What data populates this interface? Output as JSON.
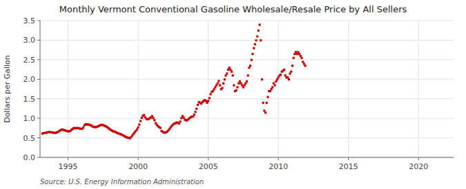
{
  "chart_data": {
    "type": "scatter",
    "title": "Monthly Vermont Conventional Gasoline Wholesale/Resale Price by All Sellers",
    "ylabel": "Dollars per Gallon",
    "source": "Source: U.S. Energy Information Administration",
    "color": "#cc0000",
    "marker": "square",
    "grid": true,
    "xlim": [
      1993.0,
      2022.5
    ],
    "xticks": [
      1995,
      2000,
      2005,
      2010,
      2015,
      2020
    ],
    "ylim": [
      0.0,
      3.5
    ],
    "yticks": [
      {
        "value": 0.0,
        "label": "0.0"
      },
      0.5,
      {
        "value": 1.0,
        "label": "1.0"
      },
      1.5,
      {
        "value": 2.0,
        "label": "2.0"
      },
      2.5,
      {
        "value": 3.0,
        "label": "3.0"
      },
      3.5
    ],
    "x": [
      1993.167,
      1993.25,
      1993.333,
      1993.417,
      1993.5,
      1993.583,
      1993.667,
      1993.75,
      1993.833,
      1993.917,
      1994.0,
      1994.083,
      1994.167,
      1994.25,
      1994.333,
      1994.417,
      1994.5,
      1994.583,
      1994.667,
      1994.75,
      1994.833,
      1994.917,
      1995.0,
      1995.083,
      1995.167,
      1995.25,
      1995.333,
      1995.417,
      1995.5,
      1995.583,
      1995.667,
      1995.75,
      1995.833,
      1995.917,
      1996.0,
      1996.083,
      1996.167,
      1996.25,
      1996.333,
      1996.417,
      1996.5,
      1996.583,
      1996.667,
      1996.75,
      1996.833,
      1996.917,
      1997.0,
      1997.083,
      1997.167,
      1997.25,
      1997.333,
      1997.417,
      1997.5,
      1997.583,
      1997.667,
      1997.75,
      1997.833,
      1997.917,
      1998.0,
      1998.083,
      1998.167,
      1998.25,
      1998.333,
      1998.417,
      1998.5,
      1998.583,
      1998.667,
      1998.75,
      1998.833,
      1998.917,
      1999.0,
      1999.083,
      1999.167,
      1999.25,
      1999.333,
      1999.417,
      1999.5,
      1999.583,
      1999.667,
      1999.75,
      1999.833,
      1999.917,
      2000.0,
      2000.083,
      2000.167,
      2000.25,
      2000.333,
      2000.417,
      2000.5,
      2000.583,
      2000.667,
      2000.75,
      2000.833,
      2000.917,
      2001.0,
      2001.083,
      2001.167,
      2001.25,
      2001.333,
      2001.417,
      2001.5,
      2001.583,
      2001.667,
      2001.75,
      2001.833,
      2001.917,
      2002.0,
      2002.083,
      2002.167,
      2002.25,
      2002.333,
      2002.417,
      2002.5,
      2002.583,
      2002.667,
      2002.75,
      2002.833,
      2002.917,
      2003.0,
      2003.083,
      2003.167,
      2003.25,
      2003.333,
      2003.417,
      2003.5,
      2003.583,
      2003.667,
      2003.75,
      2003.833,
      2003.917,
      2004.0,
      2004.083,
      2004.167,
      2004.25,
      2004.333,
      2004.417,
      2004.5,
      2004.583,
      2004.667,
      2004.75,
      2004.833,
      2004.917,
      2005.0,
      2005.083,
      2005.167,
      2005.25,
      2005.333,
      2005.417,
      2005.5,
      2005.583,
      2005.667,
      2005.75,
      2005.833,
      2005.917,
      2006.0,
      2006.083,
      2006.167,
      2006.25,
      2006.333,
      2006.417,
      2006.5,
      2006.583,
      2006.667,
      2006.75,
      2006.833,
      2006.917,
      2007.0,
      2007.083,
      2007.167,
      2007.25,
      2007.333,
      2007.417,
      2007.5,
      2007.583,
      2007.667,
      2007.75,
      2007.833,
      2007.917,
      2008.0,
      2008.083,
      2008.167,
      2008.25,
      2008.333,
      2008.417,
      2008.5,
      2008.583,
      2008.667,
      2008.75,
      2008.833,
      2008.917,
      2009.0,
      2009.083,
      2009.167,
      2009.25,
      2009.333,
      2009.417,
      2009.5,
      2009.583,
      2009.667,
      2009.75,
      2009.833,
      2009.917,
      2010.0,
      2010.083,
      2010.167,
      2010.25,
      2010.333,
      2010.417,
      2010.5,
      2010.583,
      2010.667,
      2010.75,
      2010.833,
      2010.917,
      2011.0,
      2011.083,
      2011.167,
      2011.25,
      2011.333,
      2011.417,
      2011.5,
      2011.583,
      2011.667,
      2011.75,
      2011.833,
      2011.917
    ],
    "values": [
      0.61,
      0.62,
      0.625,
      0.63,
      0.64,
      0.645,
      0.65,
      0.645,
      0.64,
      0.635,
      0.63,
      0.625,
      0.635,
      0.65,
      0.665,
      0.685,
      0.705,
      0.715,
      0.705,
      0.695,
      0.685,
      0.675,
      0.665,
      0.67,
      0.68,
      0.71,
      0.73,
      0.755,
      0.745,
      0.75,
      0.755,
      0.745,
      0.74,
      0.73,
      0.73,
      0.76,
      0.82,
      0.85,
      0.84,
      0.845,
      0.835,
      0.825,
      0.815,
      0.79,
      0.78,
      0.775,
      0.775,
      0.785,
      0.8,
      0.815,
      0.825,
      0.835,
      0.825,
      0.815,
      0.8,
      0.785,
      0.76,
      0.74,
      0.715,
      0.695,
      0.675,
      0.665,
      0.655,
      0.645,
      0.625,
      0.615,
      0.605,
      0.595,
      0.58,
      0.565,
      0.55,
      0.53,
      0.515,
      0.505,
      0.498,
      0.49,
      0.52,
      0.56,
      0.6,
      0.64,
      0.675,
      0.715,
      0.77,
      0.84,
      0.93,
      1.01,
      1.06,
      1.085,
      1.025,
      0.985,
      0.975,
      0.985,
      1.005,
      1.025,
      1.055,
      1.005,
      0.95,
      0.875,
      0.835,
      0.795,
      0.775,
      0.755,
      0.675,
      0.655,
      0.635,
      0.635,
      0.645,
      0.665,
      0.695,
      0.735,
      0.775,
      0.815,
      0.845,
      0.865,
      0.875,
      0.895,
      0.885,
      0.865,
      0.915,
      1.005,
      1.055,
      1.015,
      0.965,
      0.945,
      0.955,
      0.975,
      1.005,
      1.025,
      1.045,
      1.045,
      1.095,
      1.165,
      1.245,
      1.345,
      1.415,
      1.395,
      1.375,
      1.415,
      1.445,
      1.465,
      1.445,
      1.395,
      1.445,
      1.515,
      1.615,
      1.675,
      1.695,
      1.745,
      1.795,
      1.845,
      1.895,
      1.955,
      1.845,
      1.745,
      1.775,
      1.895,
      1.995,
      2.095,
      2.145,
      2.245,
      2.295,
      2.245,
      2.195,
      2.095,
      1.845,
      1.695,
      1.715,
      1.795,
      1.895,
      1.945,
      1.895,
      1.845,
      1.795,
      1.845,
      1.895,
      1.945,
      2.095,
      2.295,
      2.345,
      2.495,
      2.645,
      2.795,
      2.895,
      2.995,
      3.095,
      3.245,
      3.395,
      2.995,
      1.995,
      1.395,
      1.195,
      1.145,
      1.395,
      1.545,
      1.695,
      1.695,
      1.745,
      1.795,
      1.895,
      1.845,
      1.945,
      1.995,
      2.045,
      2.095,
      2.115,
      2.195,
      2.215,
      2.245,
      2.095,
      2.045,
      2.045,
      1.995,
      2.145,
      2.195,
      2.345,
      2.545,
      2.645,
      2.695,
      2.645,
      2.695,
      2.645,
      2.595,
      2.545,
      2.445,
      2.395,
      2.345
    ]
  }
}
